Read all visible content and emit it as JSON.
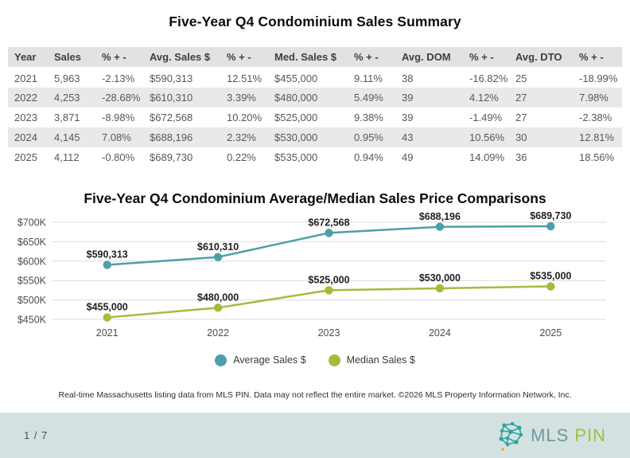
{
  "page": {
    "table_title": "Five-Year Q4 Condominium Sales Summary",
    "chart_title": "Five-Year Q4 Condominium Average/Median Sales Price Comparisons",
    "disclaimer": "Real-time Massachusetts listing data from MLS PIN. Data may not reflect the entire market. ©2026 MLS Property Information Network, Inc."
  },
  "table": {
    "headers": [
      "Year",
      "Sales",
      "% + -",
      "Avg. Sales $",
      "%  + -",
      "Med. Sales $",
      "%  + -",
      "Avg. DOM",
      "%  + -",
      "Avg. DTO",
      "%  + -"
    ],
    "rows": [
      [
        "2021",
        "5,963",
        "-2.13%",
        "$590,313",
        "12.51%",
        "$455,000",
        "9.11%",
        "38",
        "-16.82%",
        "25",
        "-18.99%"
      ],
      [
        "2022",
        "4,253",
        "-28.68%",
        "$610,310",
        "3.39%",
        "$480,000",
        "5.49%",
        "39",
        "4.12%",
        "27",
        "7.98%"
      ],
      [
        "2023",
        "3,871",
        "-8.98%",
        "$672,568",
        "10.20%",
        "$525,000",
        "9.38%",
        "39",
        "-1.49%",
        "27",
        "-2.38%"
      ],
      [
        "2024",
        "4,145",
        "7.08%",
        "$688,196",
        "2.32%",
        "$530,000",
        "0.95%",
        "43",
        "10.56%",
        "30",
        "12.81%"
      ],
      [
        "2025",
        "4,112",
        "-0.80%",
        "$689,730",
        "0.22%",
        "$535,000",
        "0.94%",
        "49",
        "14.09%",
        "36",
        "18.56%"
      ]
    ]
  },
  "chart_data": {
    "type": "line",
    "title": "Five-Year Q4 Condominium Average/Median Sales Price Comparisons",
    "categories": [
      "2021",
      "2022",
      "2023",
      "2024",
      "2025"
    ],
    "series": [
      {
        "name": "Average Sales $",
        "color": "#4d9faa",
        "values": [
          590313,
          610310,
          672568,
          688196,
          689730
        ],
        "labels": [
          "$590,313",
          "$610,310",
          "$672,568",
          "$688,196",
          "$689,730"
        ]
      },
      {
        "name": "Median Sales $",
        "color": "#a7ba3c",
        "values": [
          455000,
          480000,
          525000,
          530000,
          535000
        ],
        "labels": [
          "$455,000",
          "$480,000",
          "$525,000",
          "$530,000",
          "$535,000"
        ]
      }
    ],
    "y_ticks": [
      450000,
      500000,
      550000,
      600000,
      650000,
      700000
    ],
    "y_tick_labels": [
      "$450K",
      "$500K",
      "$550K",
      "$600K",
      "$650K",
      "$700K"
    ],
    "ylim": [
      430000,
      735000
    ],
    "grid": true,
    "legend_position": "bottom",
    "gridline_color": "#dcdcdc",
    "axis_text_color": "#4c4c4c",
    "label_text_color": "#1f1f1f"
  },
  "footer": {
    "page_indicator": "1 / 7",
    "logo": {
      "mls": "MLS",
      "pin": "PIN",
      "icon_color": "#2ba3a0",
      "mls_color": "#6e989e",
      "pin_color": "#a9bc3e",
      "accent_dot_color": "#e9a63b"
    }
  }
}
